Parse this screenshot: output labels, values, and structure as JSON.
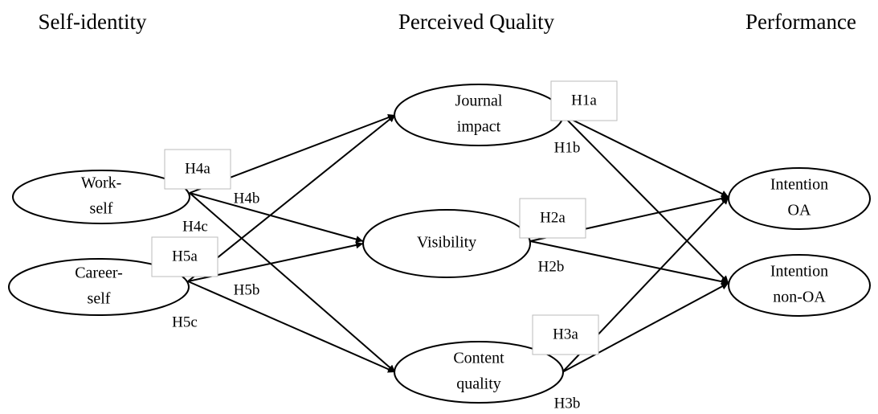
{
  "headers": [
    "Self-identity",
    "Perceived Quality",
    "Performance"
  ],
  "nodes": [
    {
      "lines": [
        "Work-",
        "self"
      ]
    },
    {
      "lines": [
        "Career-",
        "self"
      ]
    },
    {
      "lines": [
        "Journal",
        "impact"
      ]
    },
    {
      "lines": [
        "Visibility"
      ]
    },
    {
      "lines": [
        "Content",
        "quality"
      ]
    },
    {
      "lines": [
        "Intention",
        "OA"
      ]
    },
    {
      "lines": [
        "Intention",
        "non-OA"
      ]
    }
  ],
  "labels": [
    "H1a",
    "H1b",
    "H2a",
    "H2b",
    "H3a",
    "H3b",
    "H4a",
    "H4b",
    "H4c",
    "H5a",
    "H5b",
    "H5c"
  ]
}
